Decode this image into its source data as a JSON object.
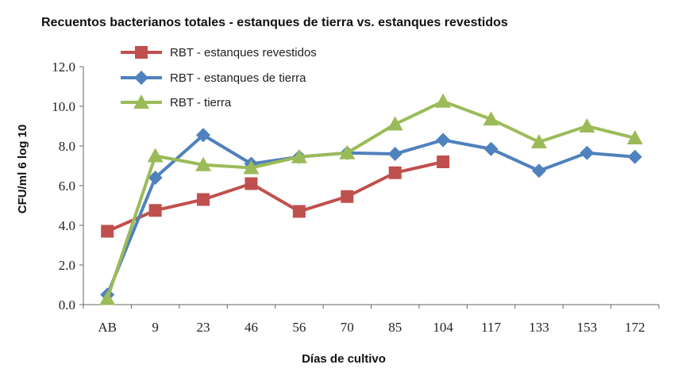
{
  "chart_data": {
    "type": "line",
    "title": "Recuentos bacterianos totales - estanques de tierra vs. estanques revestidos",
    "xlabel": "Días de cultivo",
    "ylabel": "CFU/ml 6 log 10",
    "ylim": [
      0,
      12
    ],
    "yticks": [
      "0.0",
      "2.0",
      "4.0",
      "6.0",
      "8.0",
      "10.0",
      "12.0"
    ],
    "categories": [
      "AB",
      "9",
      "23",
      "46",
      "56",
      "70",
      "85",
      "104",
      "117",
      "133",
      "153",
      "172"
    ],
    "legend_position": "top-left",
    "series": [
      {
        "name": "RBT - estanques revestidos",
        "color": "#c0504d",
        "marker": "square",
        "values": [
          3.7,
          4.75,
          5.3,
          6.1,
          4.7,
          5.45,
          6.65,
          7.2,
          null,
          null,
          null,
          null
        ]
      },
      {
        "name": "RBT - estanques de tierra",
        "color": "#4f81bd",
        "marker": "diamond",
        "values": [
          0.5,
          6.4,
          8.55,
          7.1,
          7.45,
          7.65,
          7.6,
          8.3,
          7.85,
          6.75,
          7.65,
          7.45
        ]
      },
      {
        "name": "RBT - tierra",
        "color": "#9bbb59",
        "marker": "triangle",
        "values": [
          0.3,
          7.5,
          7.05,
          6.9,
          7.45,
          7.65,
          9.1,
          10.25,
          9.35,
          8.2,
          9.0,
          8.4
        ]
      }
    ]
  }
}
